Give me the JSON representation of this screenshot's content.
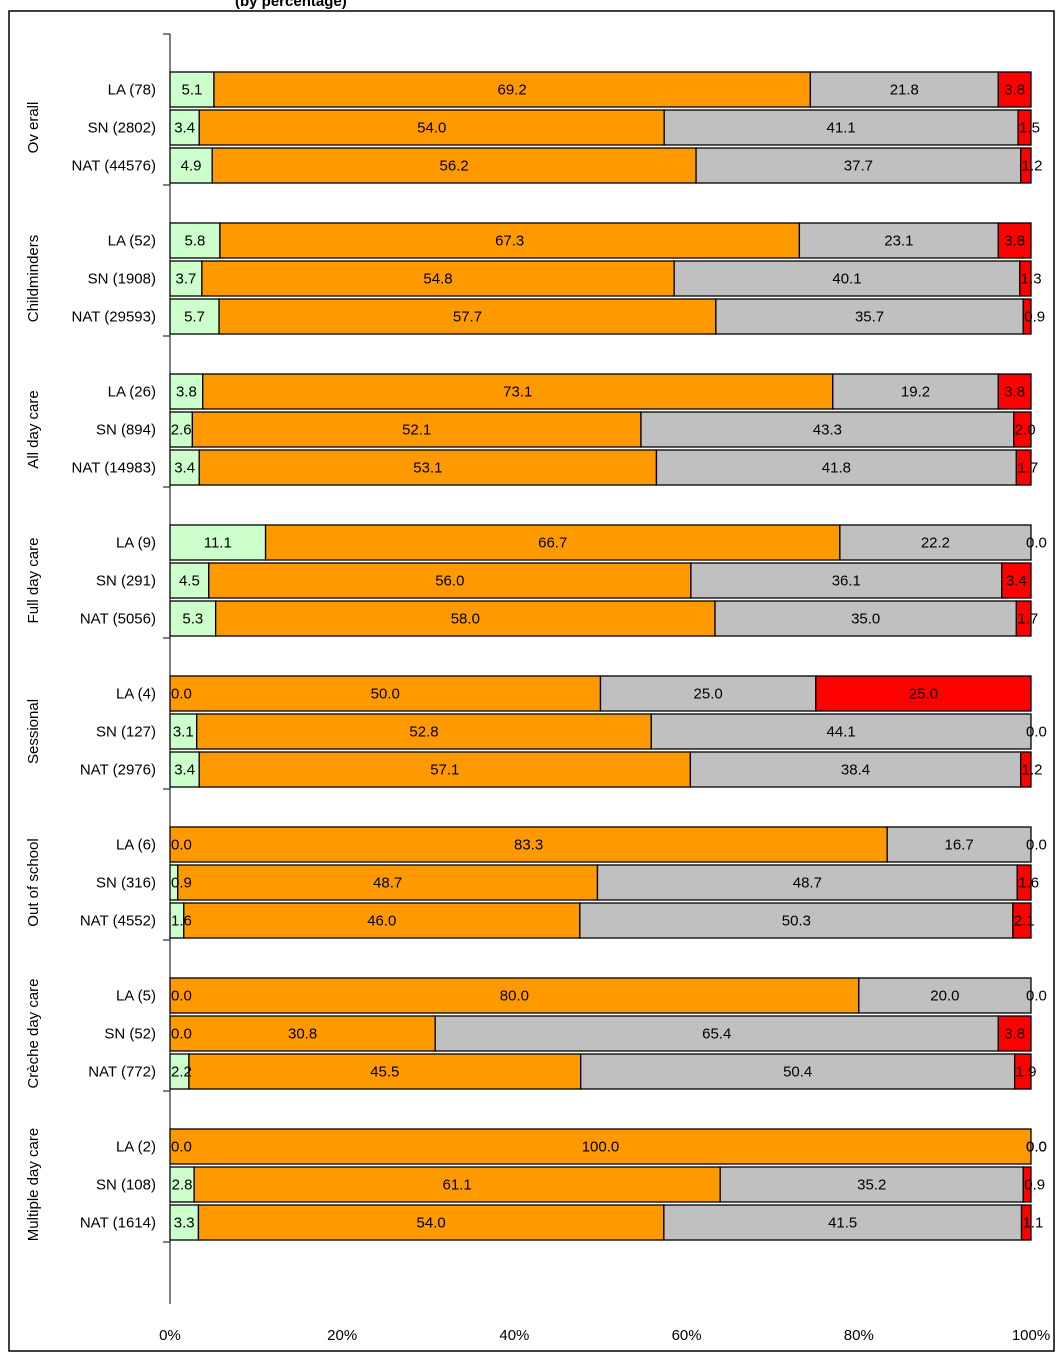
{
  "header": {
    "title": "(by percentage)"
  },
  "chart_data": {
    "type": "bar",
    "orientation": "horizontal",
    "stacked": true,
    "percent_stacked": true,
    "title": "(by percentage)",
    "xlim": [
      0,
      100
    ],
    "x_ticks": [
      "0%",
      "20%",
      "40%",
      "60%",
      "80%",
      "100%"
    ],
    "grid": false,
    "legend": "none",
    "series_colors": [
      "#ccffcc",
      "#ff9900",
      "#c0c0c0",
      "#ff0000"
    ],
    "groups": [
      {
        "label": "Ov erall",
        "rows": [
          {
            "label": "LA (78)",
            "values": [
              5.1,
              69.2,
              21.8,
              3.8
            ]
          },
          {
            "label": "SN (2802)",
            "values": [
              3.4,
              54.0,
              41.1,
              1.5
            ]
          },
          {
            "label": "NAT (44576)",
            "values": [
              4.9,
              56.2,
              37.7,
              1.2
            ]
          }
        ]
      },
      {
        "label": "Childminders",
        "rows": [
          {
            "label": "LA (52)",
            "values": [
              5.8,
              67.3,
              23.1,
              3.8
            ]
          },
          {
            "label": "SN (1908)",
            "values": [
              3.7,
              54.8,
              40.1,
              1.3
            ]
          },
          {
            "label": "NAT (29593)",
            "values": [
              5.7,
              57.7,
              35.7,
              0.9
            ]
          }
        ]
      },
      {
        "label": "All day care",
        "rows": [
          {
            "label": "LA (26)",
            "values": [
              3.8,
              73.1,
              19.2,
              3.8
            ]
          },
          {
            "label": "SN (894)",
            "values": [
              2.6,
              52.1,
              43.3,
              2.0
            ]
          },
          {
            "label": "NAT (14983)",
            "values": [
              3.4,
              53.1,
              41.8,
              1.7
            ]
          }
        ]
      },
      {
        "label": "Full day care",
        "rows": [
          {
            "label": "LA (9)",
            "values": [
              11.1,
              66.7,
              22.2,
              0.0
            ]
          },
          {
            "label": "SN (291)",
            "values": [
              4.5,
              56.0,
              36.1,
              3.4
            ]
          },
          {
            "label": "NAT (5056)",
            "values": [
              5.3,
              58.0,
              35.0,
              1.7
            ]
          }
        ]
      },
      {
        "label": "Sessional",
        "rows": [
          {
            "label": "LA (4)",
            "values": [
              0.0,
              50.0,
              25.0,
              25.0
            ]
          },
          {
            "label": "SN (127)",
            "values": [
              3.1,
              52.8,
              44.1,
              0.0
            ]
          },
          {
            "label": "NAT (2976)",
            "values": [
              3.4,
              57.1,
              38.4,
              1.2
            ]
          }
        ]
      },
      {
        "label": "Out of school",
        "rows": [
          {
            "label": "LA (6)",
            "values": [
              0.0,
              83.3,
              16.7,
              0.0
            ]
          },
          {
            "label": "SN (316)",
            "values": [
              0.9,
              48.7,
              48.7,
              1.6
            ]
          },
          {
            "label": "NAT (4552)",
            "values": [
              1.6,
              46.0,
              50.3,
              2.1
            ]
          }
        ]
      },
      {
        "label": "Crèche day care",
        "rows": [
          {
            "label": "LA (5)",
            "values": [
              0.0,
              80.0,
              20.0,
              0.0
            ]
          },
          {
            "label": "SN (52)",
            "values": [
              0.0,
              30.8,
              65.4,
              3.8
            ]
          },
          {
            "label": "NAT (772)",
            "values": [
              2.2,
              45.5,
              50.4,
              1.9
            ]
          }
        ]
      },
      {
        "label": "Multiple day care",
        "rows": [
          {
            "label": "LA (2)",
            "values": [
              0.0,
              100.0,
              0.0,
              0.0
            ]
          },
          {
            "label": "SN (108)",
            "values": [
              2.8,
              61.1,
              35.2,
              0.9
            ]
          },
          {
            "label": "NAT (1614)",
            "values": [
              3.3,
              54.0,
              41.5,
              1.1
            ]
          }
        ]
      }
    ]
  }
}
